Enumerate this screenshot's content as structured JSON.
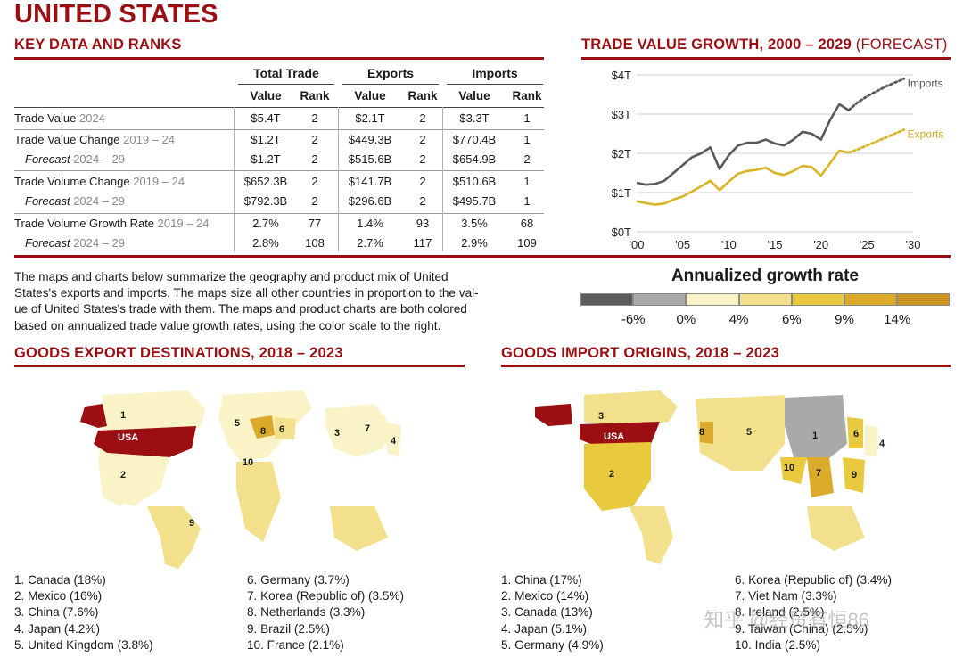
{
  "title": "UNITED STATES",
  "key_data": {
    "section_title": "KEY DATA AND RANKS",
    "group_headers": [
      "Total Trade",
      "Exports",
      "Imports"
    ],
    "sub_headers": [
      "Value",
      "Rank",
      "Value",
      "Rank",
      "Value",
      "Rank"
    ],
    "rows": [
      {
        "label": "Trade Value",
        "period": "2024",
        "italic": false,
        "cells": [
          "$5.4T",
          "2",
          "$2.1T",
          "2",
          "$3.3T",
          "1"
        ]
      },
      {
        "label": "Trade Value Change",
        "period": "2019 – 24",
        "italic": false,
        "cells": [
          "$1.2T",
          "2",
          "$449.3B",
          "2",
          "$770.4B",
          "1"
        ]
      },
      {
        "label": "Forecast",
        "period": "2024 – 29",
        "italic": true,
        "cells": [
          "$1.2T",
          "2",
          "$515.6B",
          "2",
          "$654.9B",
          "2"
        ]
      },
      {
        "label": "Trade Volume Change",
        "period": "2019 – 24",
        "italic": false,
        "cells": [
          "$652.3B",
          "2",
          "$141.7B",
          "2",
          "$510.6B",
          "1"
        ]
      },
      {
        "label": "Forecast",
        "period": "2024 – 29",
        "italic": true,
        "cells": [
          "$792.3B",
          "2",
          "$296.6B",
          "2",
          "$495.7B",
          "1"
        ]
      },
      {
        "label": "Trade Volume Growth Rate",
        "period": "2019 – 24",
        "italic": false,
        "cells": [
          "2.7%",
          "77",
          "1.4%",
          "93",
          "3.5%",
          "68"
        ]
      },
      {
        "label": "Forecast",
        "period": "2024 – 29",
        "italic": true,
        "cells": [
          "2.8%",
          "108",
          "2.7%",
          "117",
          "2.9%",
          "109"
        ]
      }
    ]
  },
  "growth_chart": {
    "title_main": "TRADE VALUE GROWTH, 2000 – 2029",
    "title_suffix": " (FORECAST)"
  },
  "chart_data": {
    "type": "line",
    "y_ticks": [
      "$0T",
      "$1T",
      "$2T",
      "$3T",
      "$4T"
    ],
    "x_ticks": [
      "'00",
      "'05",
      "'10",
      "'15",
      "'20",
      "'25",
      "'30"
    ],
    "xlim": [
      2000,
      2030
    ],
    "ylim": [
      0,
      4
    ],
    "series": [
      {
        "name": "Imports",
        "color": "#5a5a5a",
        "x": [
          2000,
          2001,
          2002,
          2003,
          2004,
          2005,
          2006,
          2007,
          2008,
          2009,
          2010,
          2011,
          2012,
          2013,
          2014,
          2015,
          2016,
          2017,
          2018,
          2019,
          2020,
          2021,
          2022,
          2023
        ],
        "y": [
          1.25,
          1.2,
          1.22,
          1.3,
          1.5,
          1.7,
          1.9,
          2.0,
          2.15,
          1.6,
          1.95,
          2.2,
          2.27,
          2.27,
          2.35,
          2.25,
          2.2,
          2.35,
          2.55,
          2.5,
          2.35,
          2.85,
          3.25,
          3.1
        ],
        "forecast_x": [
          2023,
          2024,
          2025,
          2026,
          2027,
          2028,
          2029
        ],
        "forecast_y": [
          3.1,
          3.3,
          3.45,
          3.58,
          3.7,
          3.8,
          3.9
        ]
      },
      {
        "name": "Exports",
        "color": "#d9b526",
        "x": [
          2000,
          2001,
          2002,
          2003,
          2004,
          2005,
          2006,
          2007,
          2008,
          2009,
          2010,
          2011,
          2012,
          2013,
          2014,
          2015,
          2016,
          2017,
          2018,
          2019,
          2020,
          2021,
          2022,
          2023
        ],
        "y": [
          0.78,
          0.73,
          0.69,
          0.72,
          0.82,
          0.9,
          1.03,
          1.16,
          1.3,
          1.06,
          1.28,
          1.48,
          1.55,
          1.58,
          1.63,
          1.5,
          1.45,
          1.55,
          1.68,
          1.65,
          1.43,
          1.75,
          2.07,
          2.02
        ],
        "forecast_x": [
          2023,
          2024,
          2025,
          2026,
          2027,
          2028,
          2029
        ],
        "forecast_y": [
          2.02,
          2.1,
          2.2,
          2.3,
          2.4,
          2.5,
          2.6
        ]
      }
    ]
  },
  "description": "The maps and charts below summarize the geography and product mix of United States's exports and imports. The maps size all other countries in proportion to the value of United States's trade with them. The maps and product charts are both colored based on annualized trade value growth rates, using the color scale to the right.",
  "description_lines": [
    "The maps and charts below summarize the geography and product mix of United",
    "States's exports and imports. The maps size all other countries in proportion to the val-",
    "ue of United States's trade with them. The maps and product charts are both colored",
    "based on annualized trade value growth rates, using the color scale to the right."
  ],
  "color_scale": {
    "title": "Annualized growth rate",
    "colors": [
      "#5c5c5c",
      "#a9a9a9",
      "#fbf3c8",
      "#f2e08d",
      "#e9c93e",
      "#dcaa2a",
      "#cb951f"
    ],
    "labels": [
      "-6%",
      "0%",
      "4%",
      "6%",
      "9%",
      "14%"
    ]
  },
  "export_map": {
    "title": "GOODS EXPORT DESTINATIONS, 2018 – 2023",
    "center_label": "USA",
    "labels": [
      "1",
      "2",
      "3",
      "4",
      "5",
      "6",
      "7",
      "8",
      "9",
      "10"
    ],
    "list_left": [
      "1. Canada (18%)",
      "2. Mexico (16%)",
      "3. China (7.6%)",
      "4. Japan (4.2%)",
      "5. United Kingdom (3.8%)"
    ],
    "list_right": [
      "6. Germany (3.7%)",
      "7. Korea (Republic of) (3.5%)",
      "8. Netherlands (3.3%)",
      "9. Brazil (2.5%)",
      "10. France (2.1%)"
    ]
  },
  "import_map": {
    "title": "GOODS IMPORT ORIGINS, 2018 – 2023",
    "center_label": "USA",
    "labels": [
      "1",
      "2",
      "3",
      "4",
      "5",
      "6",
      "7",
      "8",
      "9",
      "10"
    ],
    "list_left": [
      "1. China (17%)",
      "2. Mexico (14%)",
      "3. Canada (13%)",
      "4. Japan (5.1%)",
      "5. Germany (4.9%)"
    ],
    "list_right": [
      "6. Korea (Republic of) (3.4%)",
      "7. Viet Nam (3.3%)",
      "8. Ireland (2.5%)",
      "9. Taiwan (China) (2.5%)",
      "10. India (2.5%)"
    ]
  },
  "watermark": "知乎 @经贸有恒86"
}
